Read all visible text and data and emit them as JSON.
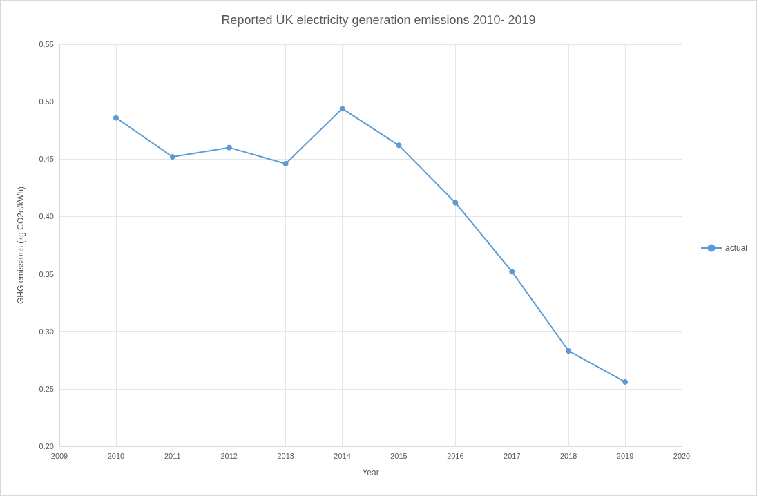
{
  "chart_data": {
    "type": "line",
    "title": "Reported UK electricity generation emissions 2010- 2019",
    "xlabel": "Year",
    "ylabel": "GHG emissions (kg CO2e/kWh)",
    "x": [
      2010,
      2011,
      2012,
      2013,
      2014,
      2015,
      2016,
      2017,
      2018,
      2019
    ],
    "series": [
      {
        "name": "actual",
        "color": "#5b9bd5",
        "values": [
          0.486,
          0.452,
          0.46,
          0.446,
          0.494,
          0.462,
          0.412,
          0.352,
          0.283,
          0.256
        ]
      }
    ],
    "xlim": [
      2009,
      2020
    ],
    "xticks": [
      2009,
      2010,
      2011,
      2012,
      2013,
      2014,
      2015,
      2016,
      2017,
      2018,
      2019,
      2020
    ],
    "ylim": [
      0.2,
      0.55
    ],
    "yticks": [
      {
        "value": 0.2,
        "label": "0.20"
      },
      0.25,
      {
        "value": 0.3,
        "label": "0.30"
      },
      0.35,
      {
        "value": 0.4,
        "label": "0.40"
      },
      0.45,
      {
        "value": 0.5,
        "label": "0.50"
      },
      0.55
    ],
    "grid": true,
    "legend": "right",
    "marker": "circle",
    "line_style": "solid"
  }
}
